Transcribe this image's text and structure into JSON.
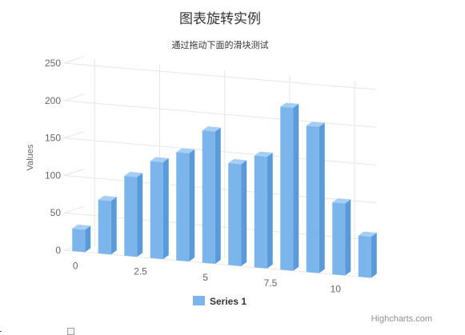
{
  "chart_data": {
    "type": "bar",
    "title": "图表旋转实例",
    "subtitle": "通过拖动下面的滑块测试",
    "ylabel": "Values",
    "xlabel": "",
    "ylim": [
      0,
      250
    ],
    "yticks": [
      "0",
      "50",
      "100",
      "150",
      "200",
      "250"
    ],
    "xticks": [
      "0",
      "2.5",
      "5",
      "7.5",
      "10"
    ],
    "grid": true,
    "legend_position": "bottom",
    "x": [
      0,
      1,
      2,
      3,
      4,
      5,
      6,
      7,
      8,
      9,
      10,
      11
    ],
    "series": [
      {
        "name": "Series 1",
        "color": "#7cb5ec",
        "values": [
          29.9,
          71.5,
          106.4,
          129.2,
          144.0,
          176.0,
          135.6,
          148.5,
          216.4,
          194.1,
          95.6,
          54.4
        ]
      }
    ]
  },
  "credits": "Highcharts.com",
  "colors": {
    "bar_front": "#7cb5ec",
    "bar_side": "#5a9ad8",
    "bar_top": "#a6cdf3",
    "grid": "#e6e6e6"
  }
}
